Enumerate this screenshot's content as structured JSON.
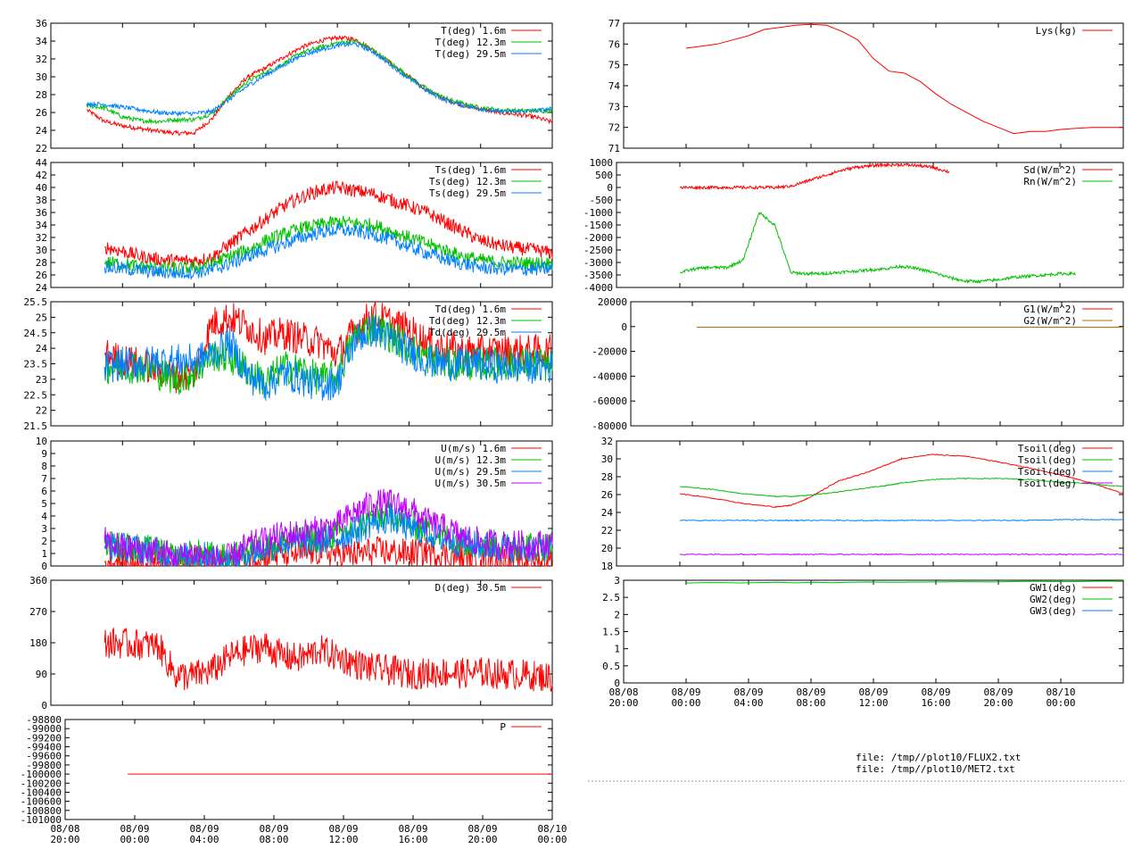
{
  "files": [
    "file: /tmp//plot10/FLUX2.txt",
    "file: /tmp//plot10/MET2.txt"
  ],
  "colors": {
    "red": "#ff0000",
    "green": "#00c000",
    "blue": "#0080ff",
    "purple": "#c000ff",
    "brown": "#b07000"
  },
  "chart_data": [
    {
      "id": "t",
      "type": "line",
      "yticks": [
        "22",
        "24",
        "26",
        "28",
        "30",
        "32",
        "34",
        "36"
      ],
      "ylim": [
        22,
        36
      ],
      "xticks": [],
      "legend": [
        "T(deg)  1.6m",
        "T(deg) 12.3m",
        "T(deg) 29.5m"
      ],
      "x": [
        0,
        0.5,
        1,
        2,
        3,
        4,
        5,
        6,
        7,
        8,
        9,
        10,
        11,
        12,
        13,
        14,
        15,
        16,
        17,
        18,
        19,
        20,
        21,
        22,
        23,
        24,
        25,
        26,
        27,
        28
      ],
      "series": [
        {
          "color": "red",
          "values": [
            null,
            null,
            null,
            26.3,
            25,
            24.5,
            24.2,
            23.9,
            23.7,
            23.7,
            25.3,
            28,
            30,
            31,
            32.2,
            33.3,
            34,
            34.4,
            34.2,
            33,
            31.5,
            30,
            28.5,
            27.5,
            26.8,
            26.4,
            26,
            25.8,
            25.5,
            24.9
          ]
        },
        {
          "color": "green",
          "values": [
            null,
            null,
            null,
            26.8,
            26.5,
            25.5,
            25.1,
            25,
            25.2,
            25.2,
            25.9,
            27.8,
            29.5,
            30.5,
            31.5,
            32.7,
            33.3,
            33.8,
            34,
            33,
            31.5,
            30,
            28.6,
            27.6,
            27,
            26.5,
            26.3,
            26.2,
            26.2,
            26.2
          ]
        },
        {
          "color": "blue",
          "values": [
            null,
            null,
            null,
            27,
            26.9,
            26.6,
            26.3,
            26,
            25.9,
            25.9,
            26.1,
            27.5,
            29,
            30.2,
            31.3,
            32.4,
            33,
            33.5,
            33.7,
            32.8,
            31.3,
            29.8,
            28.4,
            27.4,
            26.8,
            26.4,
            26.1,
            26.1,
            26.2,
            26.4
          ]
        }
      ]
    },
    {
      "id": "ts",
      "type": "line",
      "yticks": [
        "24",
        "26",
        "28",
        "30",
        "32",
        "34",
        "36",
        "38",
        "40",
        "42",
        "44"
      ],
      "ylim": [
        24,
        44
      ],
      "xticks": [],
      "legend": [
        "Ts(deg)  1.6m",
        "Ts(deg) 12.3m",
        "Ts(deg) 29.5m"
      ],
      "x": [
        3,
        4,
        5,
        6,
        7,
        8,
        9,
        10,
        11,
        12,
        13,
        14,
        15,
        16,
        17,
        18,
        19,
        20,
        21,
        22,
        23,
        24,
        25,
        26,
        27,
        28
      ],
      "series": [
        {
          "color": "red",
          "values": [
            30.5,
            29.8,
            29,
            28.5,
            28.3,
            28.3,
            28.8,
            31,
            33,
            35,
            37,
            38.5,
            39.5,
            40,
            39.5,
            39,
            38,
            37,
            36,
            34.5,
            33,
            31.5,
            30.8,
            30.3,
            30,
            29.5
          ]
        },
        {
          "color": "green",
          "values": [
            28,
            27.8,
            27.3,
            27.1,
            27,
            27.2,
            27.8,
            29,
            30,
            31.5,
            32.5,
            33.5,
            34,
            34.5,
            34.3,
            34,
            33,
            32,
            31,
            30,
            29,
            28.4,
            28,
            27.9,
            27.9,
            27.9
          ]
        },
        {
          "color": "blue",
          "values": [
            27.2,
            27,
            26.7,
            26.5,
            26.3,
            26.4,
            26.8,
            27.8,
            29,
            30,
            31,
            32,
            32.8,
            33.2,
            33,
            32.5,
            31.6,
            30.5,
            29.5,
            28.5,
            27.8,
            27.2,
            27,
            26.9,
            26.9,
            27
          ]
        }
      ]
    },
    {
      "id": "td",
      "type": "line",
      "yticks": [
        "21.5",
        "22",
        "22.5",
        "23",
        "23.5",
        "24",
        "24.5",
        "25",
        "25.5"
      ],
      "ylim": [
        21.5,
        25.5
      ],
      "xticks": [],
      "legend": [
        "Td(deg)  1.6m",
        "Td(deg) 12.3m",
        "Td(deg) 29.5m"
      ],
      "x": [
        3,
        4,
        5,
        6,
        7,
        8,
        9,
        10,
        11,
        12,
        13,
        14,
        15,
        16,
        17,
        18,
        19,
        20,
        21,
        22,
        23,
        24,
        25,
        26,
        27,
        28
      ],
      "series": [
        {
          "color": "red",
          "values": [
            23.8,
            23.6,
            23.5,
            23.3,
            23.1,
            23.2,
            24.8,
            25,
            24.7,
            24.3,
            24.5,
            24.3,
            24.2,
            23.8,
            24.6,
            25.1,
            24.8,
            24.6,
            24.2,
            24,
            23.9,
            23.9,
            23.9,
            23.9,
            23.9,
            23.9
          ]
        },
        {
          "color": "green",
          "values": [
            23.4,
            23.4,
            23.4,
            23.2,
            23,
            23.2,
            23.8,
            23.7,
            23.3,
            22.9,
            23.4,
            23.3,
            23,
            23.1,
            24.4,
            24.7,
            24.4,
            24,
            23.7,
            23.5,
            23.5,
            23.5,
            23.5,
            23.5,
            23.5,
            23.4
          ]
        },
        {
          "color": "blue",
          "values": [
            23.4,
            23.5,
            23.5,
            23.6,
            23.6,
            23.6,
            23.8,
            24.2,
            23.1,
            22.8,
            23.2,
            23,
            22.8,
            22.9,
            24.3,
            24.6,
            24.3,
            23.9,
            23.6,
            23.5,
            23.5,
            23.5,
            23.4,
            23.4,
            23.4,
            23.4
          ]
        }
      ]
    },
    {
      "id": "u",
      "type": "line",
      "yticks": [
        "0",
        "1",
        "2",
        "3",
        "4",
        "5",
        "6",
        "7",
        "8",
        "9",
        "10"
      ],
      "ylim": [
        0,
        10
      ],
      "xticks": [],
      "legend": [
        "U(m/s)  1.6m",
        "U(m/s) 12.3m",
        "U(m/s) 29.5m",
        "U(m/s) 30.5m"
      ],
      "x": [
        3,
        4,
        5,
        6,
        7,
        8,
        9,
        10,
        11,
        12,
        13,
        14,
        15,
        16,
        17,
        18,
        19,
        20,
        21,
        22,
        23,
        24,
        25,
        26,
        27,
        28
      ],
      "series": [
        {
          "color": "red",
          "values": [
            0.3,
            0.3,
            0.3,
            0.2,
            0.3,
            0.4,
            0.2,
            0.3,
            0.5,
            0.8,
            1,
            1,
            1.2,
            1,
            0.9,
            1.2,
            1.1,
            1,
            1.2,
            0.9,
            0.6,
            0.5,
            0.5,
            0.4,
            0.3,
            0.4
          ]
        },
        {
          "color": "green",
          "values": [
            1.8,
            1.6,
            1.4,
            1.2,
            0.6,
            1,
            0.8,
            0.5,
            1.2,
            1.6,
            2,
            2.1,
            2.3,
            2.5,
            3,
            3.8,
            4.2,
            3.3,
            3,
            2.3,
            2,
            1.8,
            1.7,
            1.6,
            1.6,
            1.6
          ]
        },
        {
          "color": "blue",
          "values": [
            1.6,
            1.5,
            1.3,
            1.1,
            0.5,
            0.9,
            0.7,
            0.4,
            1,
            1.4,
            1.8,
            1.8,
            2,
            2.2,
            2.8,
            3.5,
            3.8,
            3,
            2.7,
            2.1,
            1.8,
            1.6,
            1.5,
            1.4,
            1.4,
            1.5
          ]
        },
        {
          "color": "purple",
          "values": [
            2,
            1.5,
            1.3,
            1.2,
            0.6,
            1.1,
            0.5,
            0.6,
            1.6,
            2,
            2.5,
            2.6,
            2.9,
            3.2,
            4.3,
            5,
            5,
            4.6,
            3.5,
            3,
            2.3,
            1.9,
            1.7,
            1.7,
            1.7,
            1.8
          ]
        }
      ]
    },
    {
      "id": "d",
      "type": "line",
      "yticks": [
        "0",
        "90",
        "180",
        "270",
        "360"
      ],
      "ylim": [
        0,
        360
      ],
      "xticks": [],
      "legend": [
        "D(deg)  30.5m"
      ],
      "x": [
        3,
        4,
        5,
        6,
        7,
        8,
        9,
        10,
        11,
        12,
        13,
        14,
        15,
        16,
        17,
        18,
        19,
        20,
        21,
        22,
        23,
        24,
        25,
        26,
        27,
        28
      ],
      "series": [
        {
          "color": "red",
          "values": [
            180,
            178,
            175,
            172,
            85,
            85,
            100,
            140,
            160,
            170,
            140,
            135,
            160,
            140,
            120,
            105,
            100,
            90,
            92,
            95,
            92,
            95,
            90,
            90,
            85,
            80
          ]
        }
      ]
    },
    {
      "id": "p",
      "type": "line",
      "yticks": [
        "-101000",
        "-100800",
        "-100600",
        "-100400",
        "-100200",
        "-100000",
        "-99800",
        "-99600",
        "-99400",
        "-99200",
        "-99000",
        "-98800"
      ],
      "ylim": [
        -101000,
        -98800
      ],
      "xticks": [
        "08/08\n20:00",
        "08/09\n00:00",
        "08/09\n04:00",
        "08/09\n08:00",
        "08/09\n12:00",
        "08/09\n16:00",
        "08/09\n20:00",
        "08/10\n00:00"
      ],
      "legend": [
        "P"
      ],
      "x": [
        3.6,
        28
      ],
      "series": [
        {
          "color": "red",
          "values": [
            -100000,
            -100000
          ]
        }
      ]
    },
    {
      "id": "lys",
      "type": "line",
      "yticks": [
        "71",
        "72",
        "73",
        "74",
        "75",
        "76",
        "77"
      ],
      "ylim": [
        71,
        77
      ],
      "xticks": [],
      "legend": [
        "Lys(kg)"
      ],
      "x": [
        4,
        5,
        6,
        7,
        8,
        9,
        10,
        11,
        12,
        13,
        14,
        15,
        16,
        17,
        18,
        19,
        20,
        21,
        22,
        23,
        24,
        25,
        26,
        27,
        28,
        29,
        30,
        31,
        32
      ],
      "series": [
        {
          "color": "red",
          "values": [
            75.8,
            75.9,
            76,
            76.2,
            76.4,
            76.7,
            76.8,
            76.9,
            76.95,
            76.9,
            76.6,
            76.2,
            75.3,
            74.7,
            74.6,
            74.2,
            73.6,
            73.1,
            72.7,
            72.3,
            72,
            71.7,
            71.8,
            71.8,
            71.9,
            71.95,
            72,
            72,
            72
          ]
        }
      ]
    },
    {
      "id": "rad",
      "type": "line",
      "yticks": [
        "-4000",
        "-3500",
        "-3000",
        "-2500",
        "-2000",
        "-1500",
        "-1000",
        "-500",
        "0",
        "500",
        "1000"
      ],
      "ylim": [
        -4000,
        1000
      ],
      "xticks": [],
      "legend": [
        "Sd(W/m^2)",
        "Rn(W/m^2)"
      ],
      "x": [
        4,
        5,
        6,
        7,
        8,
        9,
        10,
        11,
        12,
        13,
        14,
        15,
        16,
        17,
        18,
        19,
        20,
        21,
        22,
        23,
        24,
        25,
        26,
        27,
        28,
        29
      ],
      "series": [
        {
          "color": "red",
          "values": [
            0,
            0,
            0,
            0,
            0,
            0,
            0,
            50,
            250,
            450,
            650,
            800,
            870,
            900,
            910,
            880,
            800,
            620,
            null,
            null,
            null,
            null,
            null,
            null,
            null,
            null
          ]
        },
        {
          "color": "green",
          "values": [
            -3400,
            -3250,
            -3200,
            -3200,
            -2900,
            -1000,
            -1500,
            -3400,
            -3450,
            -3450,
            -3400,
            -3350,
            -3300,
            -3250,
            -3150,
            -3250,
            -3400,
            -3600,
            -3750,
            -3750,
            -3700,
            -3600,
            -3550,
            -3500,
            -3450,
            -3450
          ]
        }
      ]
    },
    {
      "id": "g",
      "type": "line",
      "yticks": [
        "-80000",
        "-60000",
        "-40000",
        "-20000",
        "0",
        "20000"
      ],
      "ylim": [
        -80000,
        20000
      ],
      "xticks": [],
      "legend": [
        "G1(W/m^2)",
        "G2(W/m^2)"
      ],
      "x": [
        4.3,
        32
      ],
      "series": [
        {
          "color": "red",
          "values": [
            -500,
            -500
          ]
        },
        {
          "color": "brown",
          "values": [
            -500,
            -500
          ]
        }
      ]
    },
    {
      "id": "tsoil",
      "type": "line",
      "yticks": [
        "18",
        "20",
        "22",
        "24",
        "26",
        "28",
        "30",
        "32"
      ],
      "ylim": [
        18,
        32
      ],
      "xticks": [],
      "legend": [
        "Tsoil(deg)",
        "Tsoil(deg)",
        "Tsoil(deg)",
        "Tsoil(deg)"
      ],
      "x": [
        4,
        6,
        8,
        10,
        11,
        12,
        14,
        16,
        17,
        18,
        20,
        22,
        24,
        26,
        28,
        30,
        32
      ],
      "series": [
        {
          "color": "red",
          "values": [
            26.1,
            25.6,
            25,
            24.6,
            24.8,
            25.5,
            27.5,
            28.6,
            29.3,
            30,
            30.5,
            30.3,
            29.7,
            29,
            28.2,
            27.3,
            26.1
          ]
        },
        {
          "color": "green",
          "values": [
            26.9,
            26.6,
            26.1,
            25.8,
            25.8,
            25.9,
            26.3,
            26.8,
            27,
            27.3,
            27.7,
            27.8,
            27.8,
            27.7,
            27.4,
            27.2,
            26.9
          ]
        },
        {
          "color": "blue",
          "values": [
            23.1,
            23.1,
            23.1,
            23.1,
            23.1,
            23.1,
            23.1,
            23.1,
            23.1,
            23.1,
            23.1,
            23.1,
            23.1,
            23.1,
            23.2,
            23.2,
            23.2
          ]
        },
        {
          "color": "purple",
          "values": [
            19.3,
            19.3,
            19.3,
            19.3,
            19.3,
            19.3,
            19.3,
            19.3,
            19.3,
            19.3,
            19.3,
            19.3,
            19.3,
            19.3,
            19.3,
            19.3,
            19.3
          ]
        }
      ]
    },
    {
      "id": "gw",
      "type": "line",
      "yticks": [
        "0",
        "0.5",
        "1",
        "1.5",
        "2",
        "2.5",
        "3"
      ],
      "ylim": [
        0,
        3
      ],
      "xticks": [
        "08/08\n20:00",
        "08/09\n00:00",
        "08/09\n04:00",
        "08/09\n08:00",
        "08/09\n12:00",
        "08/09\n16:00",
        "08/09\n20:00",
        "08/10\n00:00"
      ],
      "legend": [
        "GW1(deg)",
        "GW2(deg)",
        "GW3(deg)"
      ],
      "x": [
        4,
        32
      ],
      "series": [
        {
          "color": "green",
          "values": [
            2.92,
            2.97
          ]
        }
      ]
    }
  ]
}
